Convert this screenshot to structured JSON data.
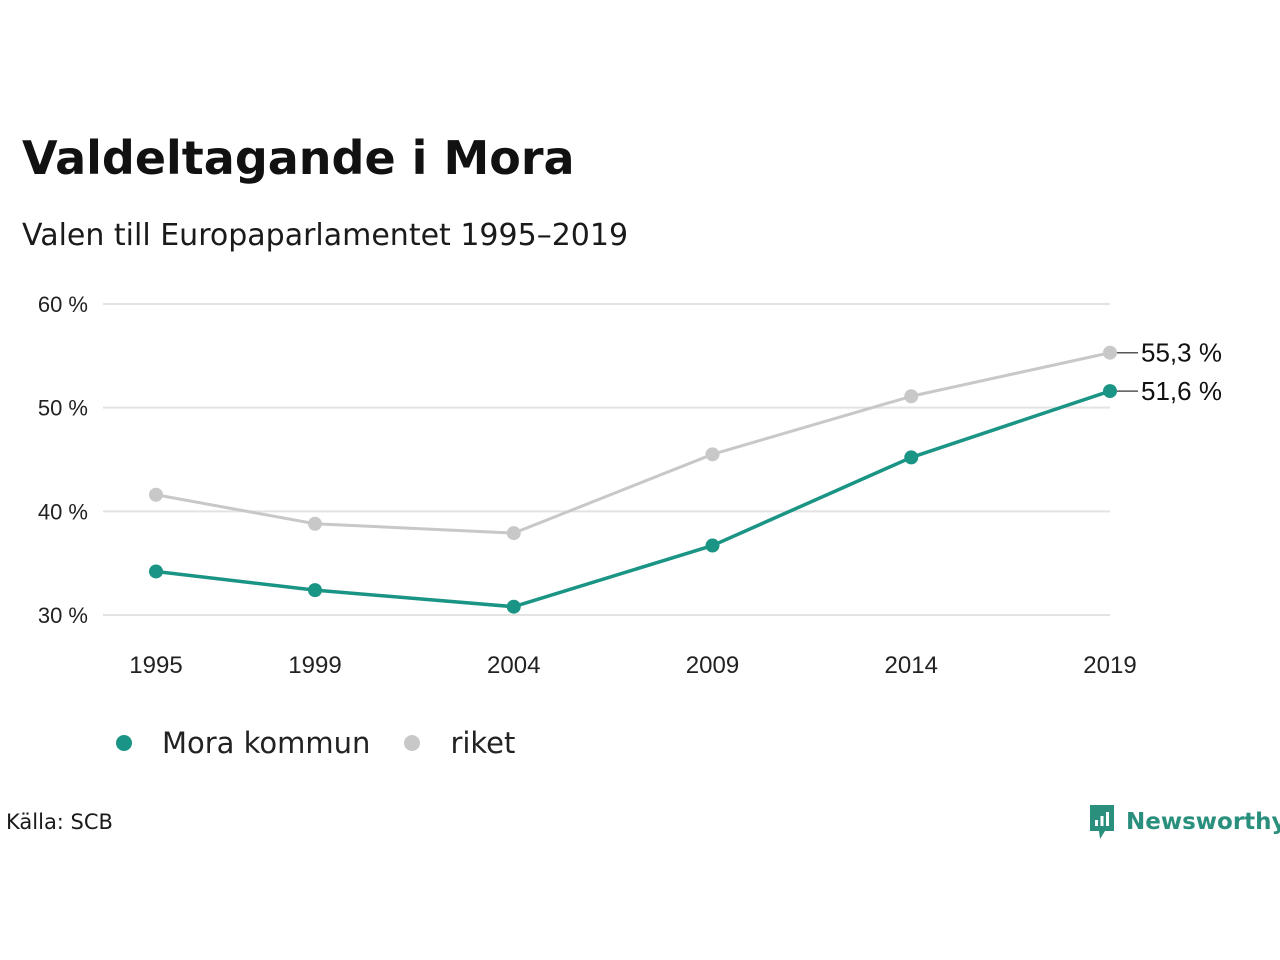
{
  "colors": {
    "mora": "#1a9484",
    "riket": "#c8c8c8",
    "grid": "#e3e3e3",
    "brand": "#2a8f7d"
  },
  "source": "Källa: SCB",
  "brand": {
    "name": "Newsworthy",
    "icon": "newsworthy-logo-icon"
  },
  "chart_data": {
    "type": "line",
    "title": "Valdeltagande i Mora",
    "subtitle": "Valen till Europaparlamentet 1995–2019",
    "x": [
      "1995",
      "1999",
      "2004",
      "2009",
      "2014",
      "2019"
    ],
    "y_ticks": [
      {
        "value": 60,
        "label": "60 %"
      },
      {
        "value": 50,
        "label": "50 %"
      },
      {
        "value": 40,
        "label": "40 %"
      },
      {
        "value": 30,
        "label": "30 %"
      }
    ],
    "ylim": [
      30,
      60
    ],
    "grid": true,
    "legend_position": "bottom-left",
    "series": [
      {
        "name": "Mora kommun",
        "color": "#1a9484",
        "values": [
          34.2,
          32.4,
          30.8,
          36.7,
          45.2,
          51.6
        ],
        "end_label": "51,6 %"
      },
      {
        "name": "riket",
        "color": "#c8c8c8",
        "values": [
          41.6,
          38.8,
          37.9,
          45.5,
          51.1,
          55.3
        ],
        "end_label": "55,3 %"
      }
    ]
  }
}
